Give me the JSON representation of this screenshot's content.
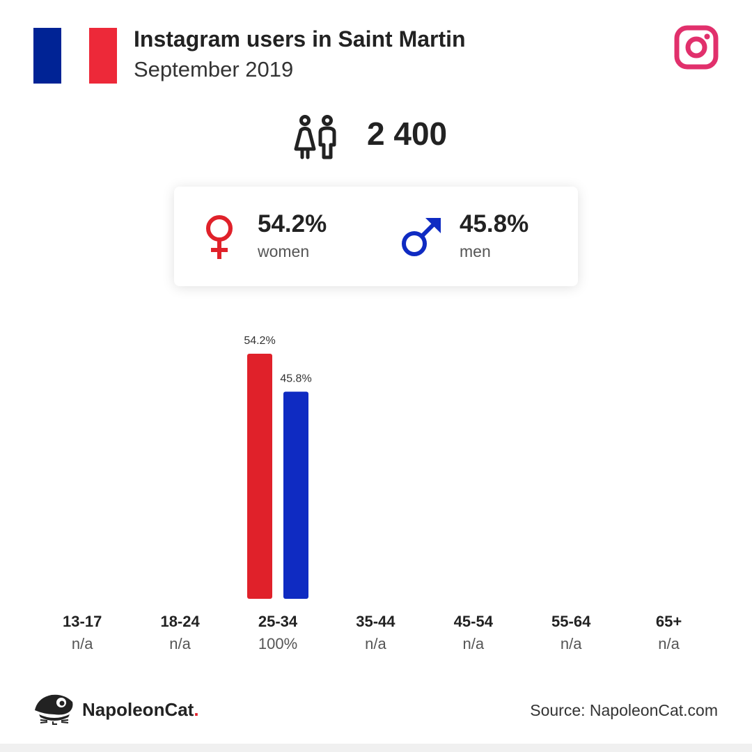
{
  "header": {
    "title": "Instagram users in Saint Martin",
    "subtitle": "September 2019"
  },
  "flag_colors": [
    "#002395",
    "#ffffff",
    "#ed2939"
  ],
  "icons": {
    "brand": "instagram-icon",
    "users": "people-icon",
    "female": "female-symbol-icon",
    "male": "male-symbol-icon",
    "logo": "napoleoncat-logo-icon"
  },
  "total_users": "2 400",
  "gender": {
    "women_pct": "54.2%",
    "women_label": "women",
    "men_pct": "45.8%",
    "men_label": "men"
  },
  "colors": {
    "women": "#e0212a",
    "men": "#0f2bc2",
    "instagram": "#e1306c"
  },
  "chart_data": {
    "type": "bar",
    "categories": [
      "13-17",
      "18-24",
      "25-34",
      "35-44",
      "45-54",
      "55-64",
      "65+"
    ],
    "category_shares": [
      "n/a",
      "n/a",
      "100%",
      "n/a",
      "n/a",
      "n/a",
      "n/a"
    ],
    "series": [
      {
        "name": "women",
        "values": [
          null,
          null,
          54.2,
          null,
          null,
          null,
          null
        ],
        "labels": [
          null,
          null,
          "54.2%",
          null,
          null,
          null,
          null
        ]
      },
      {
        "name": "men",
        "values": [
          null,
          null,
          45.8,
          null,
          null,
          null,
          null
        ],
        "labels": [
          null,
          null,
          "45.8%",
          null,
          null,
          null,
          null
        ]
      }
    ],
    "ylim": [
      0,
      54.2
    ],
    "grid": false
  },
  "footer": {
    "brand": "NapoleonCat",
    "brand_dot": ".",
    "source": "Source: NapoleonCat.com"
  }
}
